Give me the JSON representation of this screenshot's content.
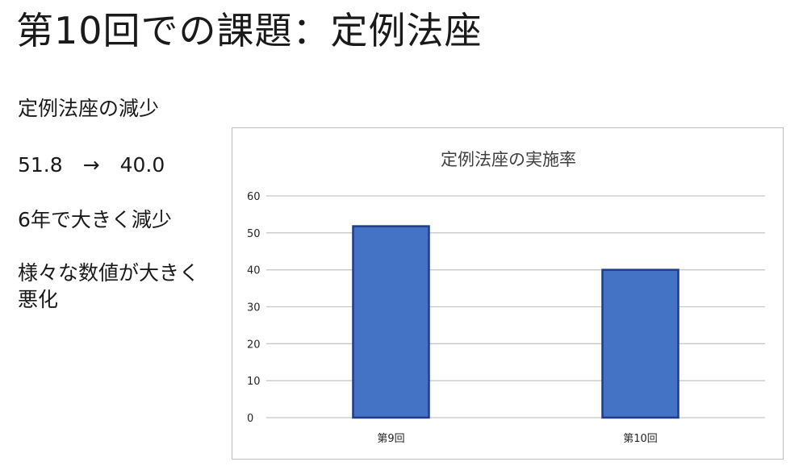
{
  "slide": {
    "title": "第10回での課題：定例法座",
    "bullets": [
      "定例法座の減少",
      "51.8　→　40.0",
      "6年で大きく減少",
      "様々な数値が大きく悪化"
    ]
  },
  "colors": {
    "bar_fill": "#4472c4",
    "bar_stroke": "#1f3c88",
    "grid": "#c8c8c8",
    "frame": "#bfbfbf"
  },
  "chart_data": {
    "type": "bar",
    "title": "定例法座の実施率",
    "categories": [
      "第9回",
      "第10回"
    ],
    "values": [
      51.8,
      40.0
    ],
    "ylim": [
      0,
      60
    ],
    "yticks": [
      0,
      10,
      20,
      30,
      40,
      50,
      60
    ],
    "xlabel": "",
    "ylabel": "",
    "grid": true,
    "legend": "none"
  }
}
